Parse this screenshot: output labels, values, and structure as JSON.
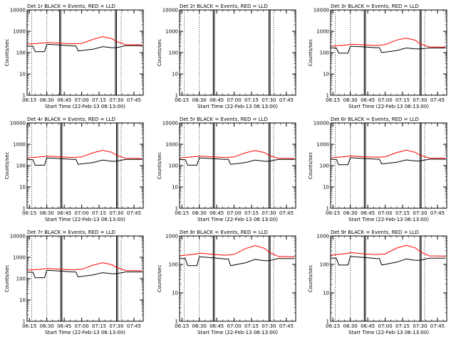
{
  "figure": {
    "y_label": "Counts/sec",
    "x_label": "Start Time (22-Feb-13 06:13:00)",
    "title_suffix": "BLACK = Events, RED = LLD",
    "colors": {
      "events": "#000000",
      "lld": "#ff0000",
      "axes": "#000000"
    }
  },
  "chart_data": [
    {
      "type": "line",
      "detector": "Det 1r",
      "title": "Det 1r BLACK = Events, RED = LLD",
      "xlabel": "Start Time (22-Feb-13 06:13:00)",
      "ylabel": "Counts/sec",
      "yscale": "log",
      "ylim": [
        1,
        10000
      ],
      "yticks": [
        "1",
        "10",
        "100",
        "1000",
        "10000"
      ],
      "xlim": [
        "06:13",
        "07:53"
      ],
      "xticks": [
        "06:15",
        "06:30",
        "06:45",
        "07:00",
        "07:15",
        "07:30",
        "07:45"
      ],
      "marker_lines_solid": [
        "06:41",
        "06:42",
        "07:29",
        "07:30"
      ],
      "marker_lines_dotted": [
        "06:17",
        "06:30",
        "07:34"
      ],
      "series": [
        {
          "color": "#ff0000",
          "x": [
            "06:13",
            "06:28",
            "06:30",
            "06:42",
            "06:52",
            "07:00",
            "07:10",
            "07:18",
            "07:26",
            "07:30",
            "07:38",
            "07:52"
          ],
          "y": [
            250,
            285,
            300,
            275,
            260,
            270,
            420,
            560,
            450,
            330,
            235,
            230
          ]
        },
        {
          "color": "#000000",
          "x": [
            "06:13",
            "06:18",
            "06:20",
            "06:28",
            "06:30",
            "06:42",
            "06:52",
            "06:55",
            "06:57",
            "07:10",
            "07:18",
            "07:26",
            "07:30",
            "07:38",
            "07:52"
          ],
          "y": [
            200,
            200,
            110,
            110,
            245,
            225,
            205,
            205,
            120,
            145,
            190,
            170,
            170,
            210,
            210
          ]
        }
      ]
    },
    {
      "type": "line",
      "detector": "Det 2r",
      "title": "Det 2r BLACK = Events, RED = LLD",
      "xlabel": "Start Time (22-Feb-13 06:13:00)",
      "ylabel": "Counts/sec",
      "yscale": "log",
      "ylim": [
        1,
        10000
      ],
      "yticks": [
        "1",
        "10",
        "100",
        "1000",
        "10000"
      ],
      "xlim": [
        "06:13",
        "07:53"
      ],
      "xticks": [
        "06:15",
        "06:30",
        "06:45",
        "07:00",
        "07:15",
        "07:30",
        "07:45"
      ],
      "marker_lines_solid": [
        "06:42",
        "06:43",
        "07:30",
        "07:31"
      ],
      "marker_lines_dotted": [
        "06:17",
        "06:30",
        "07:34"
      ],
      "series": []
    },
    {
      "type": "line",
      "detector": "Det 3r",
      "title": "Det 3r BLACK = Events, RED = LLD",
      "xlabel": "Start Time (22-Feb-13 06:13:00)",
      "ylabel": "Counts/sec",
      "yscale": "log",
      "ylim": [
        1,
        10000
      ],
      "yticks": [
        "1",
        "10",
        "100",
        "1000",
        "10000"
      ],
      "xlim": [
        "06:13",
        "07:53"
      ],
      "xticks": [
        "06:15",
        "06:30",
        "06:45",
        "07:00",
        "07:15",
        "07:30",
        "07:45"
      ],
      "marker_lines_solid": [
        "06:42",
        "06:43",
        "07:30",
        "07:31"
      ],
      "marker_lines_dotted": [
        "06:17",
        "06:30",
        "07:34"
      ],
      "series": [
        {
          "color": "#ff0000",
          "x": [
            "06:13",
            "06:28",
            "06:30",
            "06:42",
            "06:52",
            "07:00",
            "07:10",
            "07:18",
            "07:26",
            "07:30",
            "07:38",
            "07:52"
          ],
          "y": [
            200,
            230,
            250,
            230,
            215,
            235,
            390,
            480,
            380,
            260,
            185,
            180
          ]
        },
        {
          "color": "#000000",
          "x": [
            "06:13",
            "06:18",
            "06:20",
            "06:28",
            "06:30",
            "06:42",
            "06:52",
            "06:55",
            "06:57",
            "07:10",
            "07:18",
            "07:26",
            "07:30",
            "07:38",
            "07:52"
          ],
          "y": [
            165,
            165,
            95,
            95,
            200,
            185,
            170,
            170,
            100,
            125,
            165,
            150,
            150,
            165,
            165
          ]
        }
      ]
    },
    {
      "type": "line",
      "detector": "Det 4r",
      "title": "Det 4r BLACK = Events, RED = LLD",
      "xlabel": "Start Time (22-Feb-13 06:13:00)",
      "ylabel": "Counts/sec",
      "yscale": "log",
      "ylim": [
        1,
        10000
      ],
      "yticks": [
        "1",
        "10",
        "100",
        "1000",
        "10000"
      ],
      "xlim": [
        "06:13",
        "07:53"
      ],
      "xticks": [
        "06:15",
        "06:30",
        "06:45",
        "07:00",
        "07:15",
        "07:30",
        "07:45"
      ],
      "marker_lines_solid": [
        "06:42",
        "06:43",
        "07:30",
        "07:31"
      ],
      "marker_lines_dotted": [
        "06:17",
        "06:30",
        "07:34"
      ],
      "series": [
        {
          "color": "#ff0000",
          "x": [
            "06:13",
            "06:28",
            "06:30",
            "06:42",
            "06:52",
            "07:00",
            "07:10",
            "07:18",
            "07:26",
            "07:30",
            "07:38",
            "07:52"
          ],
          "y": [
            230,
            265,
            280,
            255,
            240,
            255,
            400,
            520,
            420,
            310,
            220,
            215
          ]
        },
        {
          "color": "#000000",
          "x": [
            "06:13",
            "06:18",
            "06:20",
            "06:28",
            "06:30",
            "06:42",
            "06:52",
            "06:55",
            "06:57",
            "07:10",
            "07:18",
            "07:26",
            "07:30",
            "07:38",
            "07:52"
          ],
          "y": [
            190,
            190,
            105,
            105,
            230,
            210,
            195,
            195,
            115,
            140,
            180,
            160,
            160,
            195,
            195
          ]
        }
      ]
    },
    {
      "type": "line",
      "detector": "Det 5r",
      "title": "Det 5r BLACK = Events, RED = LLD",
      "xlabel": "Start Time (22-Feb-13 06:13:00)",
      "ylabel": "Counts/sec",
      "yscale": "log",
      "ylim": [
        1,
        10000
      ],
      "yticks": [
        "1",
        "10",
        "100",
        "1000",
        "10000"
      ],
      "xlim": [
        "06:13",
        "07:53"
      ],
      "xticks": [
        "06:15",
        "06:30",
        "06:45",
        "07:00",
        "07:15",
        "07:30",
        "07:45"
      ],
      "marker_lines_solid": [
        "06:42",
        "06:43",
        "07:30",
        "07:31"
      ],
      "marker_lines_dotted": [
        "06:17",
        "06:30",
        "07:34"
      ],
      "series": [
        {
          "color": "#ff0000",
          "x": [
            "06:13",
            "06:28",
            "06:30",
            "06:42",
            "06:52",
            "07:00",
            "07:10",
            "07:18",
            "07:26",
            "07:30",
            "07:38",
            "07:52"
          ],
          "y": [
            230,
            265,
            280,
            255,
            240,
            255,
            400,
            510,
            410,
            300,
            220,
            215
          ]
        },
        {
          "color": "#000000",
          "x": [
            "06:13",
            "06:18",
            "06:20",
            "06:28",
            "06:30",
            "06:42",
            "06:52",
            "06:55",
            "06:57",
            "07:10",
            "07:18",
            "07:26",
            "07:30",
            "07:38",
            "07:52"
          ],
          "y": [
            190,
            190,
            105,
            105,
            230,
            210,
            195,
            195,
            115,
            140,
            180,
            160,
            160,
            195,
            195
          ]
        }
      ]
    },
    {
      "type": "line",
      "detector": "Det 6r",
      "title": "Det 6r BLACK = Events, RED = LLD",
      "xlabel": "Start Time (22-Feb-13 06:13:00)",
      "ylabel": "Counts/sec",
      "yscale": "log",
      "ylim": [
        1,
        10000
      ],
      "yticks": [
        "1",
        "10",
        "100",
        "1000",
        "10000"
      ],
      "xlim": [
        "06:13",
        "07:53"
      ],
      "xticks": [
        "06:15",
        "06:30",
        "06:45",
        "07:00",
        "07:15",
        "07:30",
        "07:45"
      ],
      "marker_lines_solid": [
        "06:42",
        "06:43",
        "07:30",
        "07:31"
      ],
      "marker_lines_dotted": [
        "06:17",
        "06:30",
        "07:34"
      ],
      "series": [
        {
          "color": "#ff0000",
          "x": [
            "06:13",
            "06:28",
            "06:30",
            "06:42",
            "06:52",
            "07:00",
            "07:10",
            "07:18",
            "07:26",
            "07:30",
            "07:38",
            "07:52"
          ],
          "y": [
            235,
            270,
            285,
            260,
            245,
            260,
            410,
            530,
            420,
            310,
            225,
            220
          ]
        },
        {
          "color": "#000000",
          "x": [
            "06:13",
            "06:18",
            "06:20",
            "06:28",
            "06:30",
            "06:42",
            "06:52",
            "06:55",
            "06:57",
            "07:10",
            "07:18",
            "07:26",
            "07:30",
            "07:38",
            "07:52"
          ],
          "y": [
            195,
            195,
            110,
            110,
            235,
            215,
            200,
            200,
            120,
            145,
            185,
            165,
            165,
            200,
            200
          ]
        }
      ]
    },
    {
      "type": "line",
      "detector": "Det 7r",
      "title": "Det 7r BLACK = Events, RED = LLD",
      "xlabel": "Start Time (22-Feb-13 06:13:00)",
      "ylabel": "Counts/sec",
      "yscale": "log",
      "ylim": [
        1,
        10000
      ],
      "yticks": [
        "1",
        "10",
        "100",
        "1000",
        "10000"
      ],
      "xlim": [
        "06:13",
        "07:53"
      ],
      "xticks": [
        "06:15",
        "06:30",
        "06:45",
        "07:00",
        "07:15",
        "07:30",
        "07:45"
      ],
      "marker_lines_solid": [
        "06:42",
        "06:43",
        "07:30",
        "07:31"
      ],
      "marker_lines_dotted": [
        "06:17",
        "06:30",
        "07:34"
      ],
      "series": [
        {
          "color": "#ff0000",
          "x": [
            "06:13",
            "06:28",
            "06:30",
            "06:42",
            "06:52",
            "07:00",
            "07:10",
            "07:18",
            "07:26",
            "07:30",
            "07:38",
            "07:52"
          ],
          "y": [
            250,
            285,
            300,
            275,
            260,
            275,
            430,
            560,
            450,
            330,
            240,
            235
          ]
        },
        {
          "color": "#000000",
          "x": [
            "06:13",
            "06:18",
            "06:20",
            "06:28",
            "06:30",
            "06:42",
            "06:52",
            "06:55",
            "06:57",
            "07:10",
            "07:18",
            "07:26",
            "07:30",
            "07:38",
            "07:52"
          ],
          "y": [
            200,
            200,
            110,
            110,
            245,
            225,
            205,
            205,
            120,
            150,
            190,
            170,
            170,
            205,
            205
          ]
        }
      ]
    },
    {
      "type": "line",
      "detector": "Det 8r",
      "title": "Det 8r BLACK = Events, RED = LLD",
      "xlabel": "Start Time (22-Feb-13 06:13:00)",
      "ylabel": "Counts/sec",
      "yscale": "log",
      "ylim": [
        1,
        1000
      ],
      "yticks": [
        "1",
        "10",
        "100",
        "1000"
      ],
      "xlim": [
        "06:13",
        "07:53"
      ],
      "xticks": [
        "06:15",
        "06:30",
        "06:45",
        "07:00",
        "07:15",
        "07:30",
        "07:45"
      ],
      "marker_lines_solid": [
        "06:42",
        "06:43",
        "07:30",
        "07:31"
      ],
      "marker_lines_dotted": [
        "06:17",
        "06:30",
        "07:34"
      ],
      "series": [
        {
          "color": "#ff0000",
          "x": [
            "06:13",
            "06:28",
            "06:30",
            "06:42",
            "06:52",
            "07:00",
            "07:10",
            "07:18",
            "07:26",
            "07:30",
            "07:38",
            "07:52"
          ],
          "y": [
            200,
            235,
            250,
            225,
            210,
            225,
            360,
            460,
            370,
            270,
            190,
            185
          ]
        },
        {
          "color": "#000000",
          "x": [
            "06:13",
            "06:18",
            "06:20",
            "06:28",
            "06:30",
            "06:42",
            "06:52",
            "06:55",
            "06:57",
            "07:10",
            "07:18",
            "07:26",
            "07:30",
            "07:38",
            "07:52"
          ],
          "y": [
            160,
            160,
            90,
            90,
            185,
            170,
            155,
            155,
            90,
            115,
            150,
            135,
            135,
            160,
            160
          ]
        }
      ]
    },
    {
      "type": "line",
      "detector": "Det 9r",
      "title": "Det 9r BLACK = Events, RED = LLD",
      "xlabel": "Start Time (22-Feb-13 06:13:00)",
      "ylabel": "Counts/sec",
      "yscale": "log",
      "ylim": [
        1,
        1000
      ],
      "yticks": [
        "1",
        "10",
        "100",
        "1000"
      ],
      "xlim": [
        "06:13",
        "07:53"
      ],
      "xticks": [
        "06:15",
        "06:30",
        "06:45",
        "07:00",
        "07:15",
        "07:30",
        "07:45"
      ],
      "marker_lines_solid": [
        "06:42",
        "06:43",
        "07:30",
        "07:31"
      ],
      "marker_lines_dotted": [
        "06:17",
        "06:30",
        "07:34"
      ],
      "series": [
        {
          "color": "#ff0000",
          "x": [
            "06:13",
            "06:28",
            "06:30",
            "06:42",
            "06:52",
            "07:00",
            "07:10",
            "07:18",
            "07:26",
            "07:30",
            "07:38",
            "07:52"
          ],
          "y": [
            210,
            245,
            260,
            235,
            220,
            235,
            375,
            470,
            380,
            280,
            200,
            195
          ]
        },
        {
          "color": "#000000",
          "x": [
            "06:13",
            "06:18",
            "06:20",
            "06:28",
            "06:30",
            "06:42",
            "06:52",
            "06:55",
            "06:57",
            "07:10",
            "07:18",
            "07:26",
            "07:30",
            "07:38",
            "07:52"
          ],
          "y": [
            165,
            165,
            95,
            95,
            190,
            175,
            160,
            160,
            95,
            120,
            155,
            140,
            140,
            165,
            165
          ]
        }
      ]
    }
  ]
}
